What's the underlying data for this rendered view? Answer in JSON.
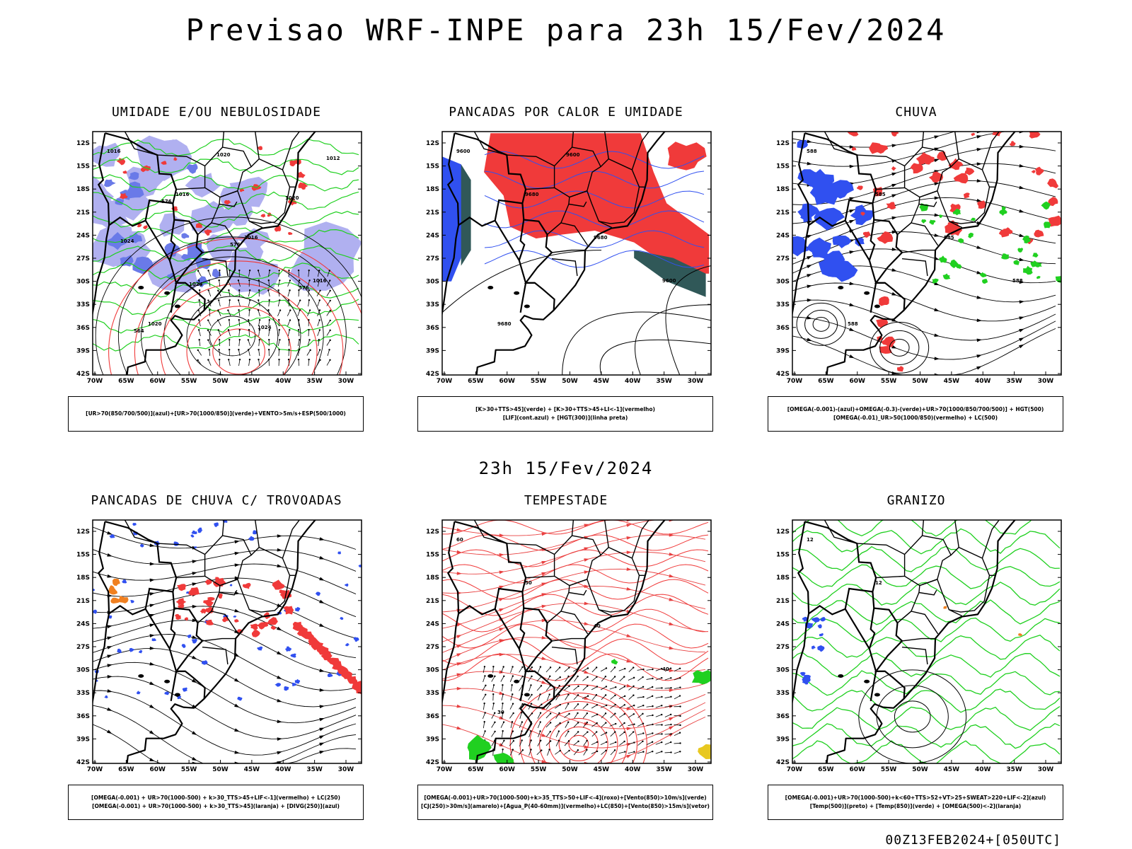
{
  "header": {
    "title": "Previsao WRF-INPE  para 23h 15/Fev/2024"
  },
  "mid_title": "23h 15/Fev/2024",
  "footer": "00Z13FEB2024+[050UTC]",
  "axes": {
    "lat_ticks": [
      "12S",
      "15S",
      "18S",
      "21S",
      "24S",
      "27S",
      "30S",
      "33S",
      "36S",
      "39S",
      "42S"
    ],
    "lon_ticks": [
      "70W",
      "65W",
      "60W",
      "55W",
      "50W",
      "45W",
      "40W",
      "35W",
      "30W"
    ]
  },
  "colors": {
    "red": "#f03a3a",
    "blue": "#3050f0",
    "green": "#20d020",
    "lavender": "#b0b0f0",
    "teal": "#305858",
    "orange": "#f08020",
    "yellow": "#e8c820",
    "black": "#000000"
  },
  "panels": [
    {
      "id": "umidade",
      "title": "UMIDADE E/OU NEBULOSIDADE",
      "legend": [
        "[UR>70(850/700/500)](azul)+[UR>70(1000/850)](verde)+VENTO>5m/s+ESP(500/1000)"
      ],
      "contour_labels": [
        "1016",
        "1016",
        "1016",
        "1016",
        "1020",
        "1020",
        "1020",
        "1024",
        "1024",
        "1024",
        "1012",
        "576",
        "576",
        "576",
        "564"
      ]
    },
    {
      "id": "pancadas-calor",
      "title": "PANCADAS POR CALOR E UMIDADE",
      "legend": [
        "[K>30+TTS>45](verde) + [K>30+TTS>45+LI<-1](vermelho)",
        "[LIF](cont.azul) + [HGT(300)](linha preta)"
      ],
      "contour_labels": [
        "9600",
        "9680",
        "9680",
        "9600",
        "9680",
        "9600"
      ]
    },
    {
      "id": "chuva",
      "title": "CHUVA",
      "legend": [
        "[OMEGA(-0.001)-(azul)+OMEGA(-0.3)-(verde)+UR>70(1000/850/700/500)] + HGT(500)",
        "[OMEGA(-0.01)_UR>50(1000/850)(vermelho) + LC(500)"
      ],
      "contour_labels": [
        "588",
        "585",
        "585",
        "588",
        "588"
      ]
    },
    {
      "id": "pancadas-trovoadas",
      "title": "PANCADAS DE CHUVA C/ TROVOADAS",
      "legend": [
        "[OMEGA(-0.001) + UR>70(1000-500) + k>30_TTS>45+LIF<-1](vermelho) + LC(250)",
        "[OMEGA(-0.001) + UR>70(1000-500) + k>30_TTS>45](laranja) + [DIVG(250)](azul)"
      ],
      "contour_labels": []
    },
    {
      "id": "tempestade",
      "title": "TEMPESTADE",
      "legend": [
        "[OMEGA(-0.001)+UR>70(1000-500)+k>35_TTS>50+LIF<-4](roxo)+[Vento(850)>10m/s](verde)",
        "[CJ(250)>30m/s](amarelo)+[Agua_P(40-60mm)](vermelho)+LC(850)+[Vento(850)>15m/s](vetor)"
      ],
      "contour_labels": [
        "60",
        "50",
        "40",
        "40",
        "30"
      ]
    },
    {
      "id": "granizo",
      "title": "GRANIZO",
      "legend": [
        "[OMEGA(-0.001)+UR>70(1000-500)+k<60+TTS>52+VT>25+SWEAT>220+LIF<-2](azul)",
        "[Temp(500)](preto) + [Temp(850)](verde) + [OMEGA(500)<-2](laranja)"
      ],
      "contour_labels": [
        "12",
        "12"
      ]
    }
  ]
}
